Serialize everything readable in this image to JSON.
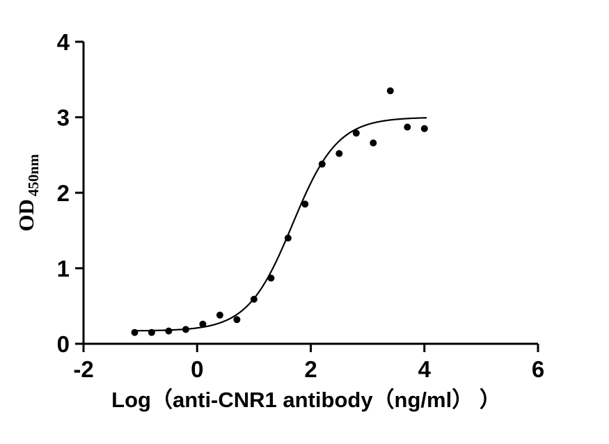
{
  "page": {
    "background": "#ffffff"
  },
  "chart_data": {
    "type": "scatter",
    "title": "",
    "xlabel": "Log（anti-CNR1 antibody（ng/ml） ）",
    "ylabel_main": "OD",
    "ylabel_sub": "450nm",
    "xlim": [
      -2,
      6
    ],
    "ylim": [
      0,
      4
    ],
    "x_ticks": [
      -2,
      0,
      2,
      4,
      6
    ],
    "y_ticks": [
      0,
      1,
      2,
      3,
      4
    ],
    "grid": false,
    "legend": "none",
    "points": {
      "x": [
        -1.1,
        -0.8,
        -0.5,
        -0.2,
        0.1,
        0.4,
        0.7,
        1.0,
        1.3,
        1.6,
        1.9,
        2.2,
        2.5,
        2.8,
        3.1,
        3.4,
        3.7,
        4.0
      ],
      "y": [
        0.15,
        0.15,
        0.17,
        0.19,
        0.26,
        0.38,
        0.32,
        0.59,
        0.87,
        1.4,
        1.85,
        2.38,
        2.52,
        2.79,
        2.66,
        3.35,
        2.87,
        2.85
      ]
    },
    "fit_curve": {
      "model": "4PL-sigmoid",
      "bottom": 0.17,
      "top": 3.0,
      "logEC50": 1.68,
      "hill": 1.1,
      "x_start": -1.12,
      "x_end": 4.05
    },
    "colors": {
      "points": "#000000",
      "curve": "#000000",
      "axis": "#000000",
      "text": "#000000"
    }
  }
}
